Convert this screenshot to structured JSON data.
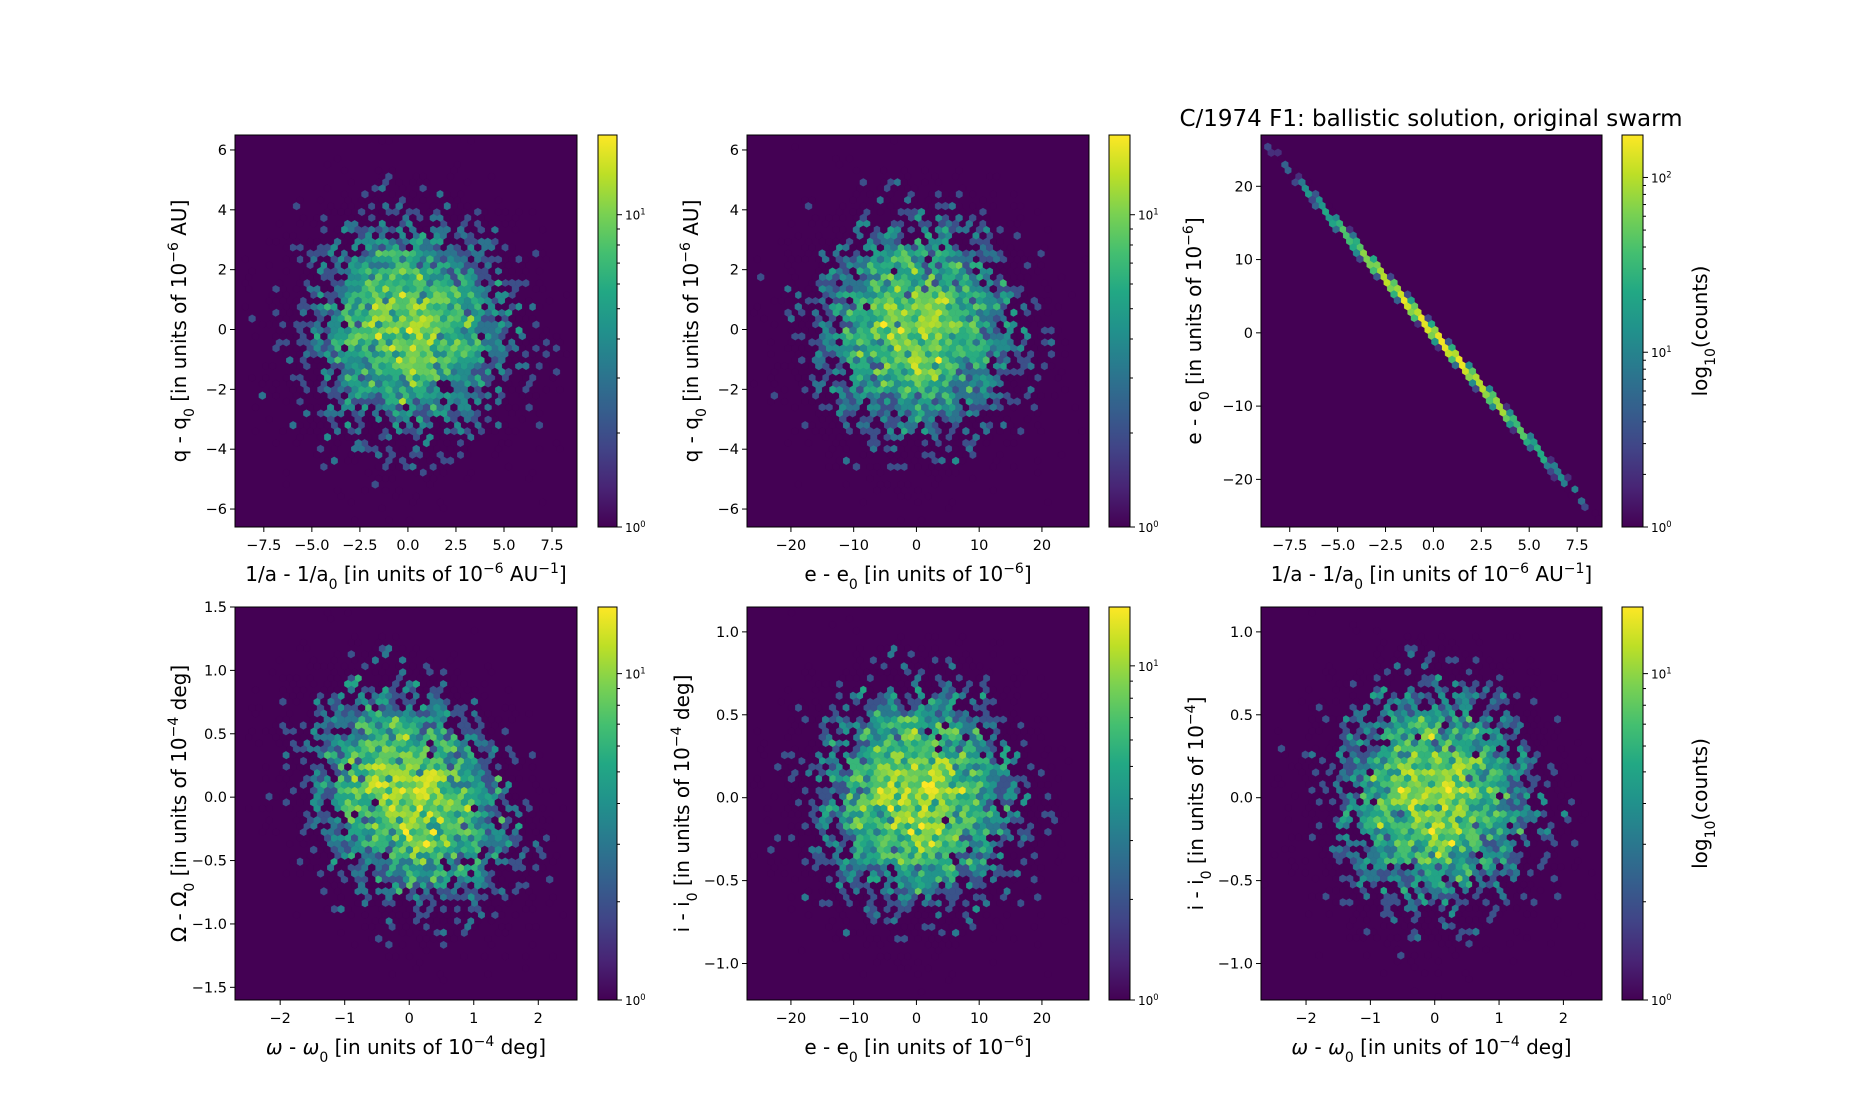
{
  "title": "C/1974 F1:  ballistic solution, original swarm",
  "colormap": "viridis",
  "background_color": "#440154",
  "chart_data": [
    {
      "type": "heatmap",
      "kind": "hexbin",
      "color_scale": "log",
      "xlim": [
        -9,
        8.8
      ],
      "ylim": [
        -6.6,
        6.5
      ],
      "xticks": [
        -7.5,
        -5,
        -2.5,
        0,
        2.5,
        5,
        7.5
      ],
      "xticklabels": [
        "−7.5",
        "−5.0",
        "−2.5",
        "0.0",
        "2.5",
        "5.0",
        "7.5"
      ],
      "yticks": [
        -6,
        -4,
        -2,
        0,
        2,
        4,
        6
      ],
      "yticklabels": [
        "−6",
        "−4",
        "−2",
        "0",
        "2",
        "4",
        "6"
      ],
      "xlabel": [
        [
          "1/a - 1/a",
          ""
        ],
        [
          "0",
          "sub"
        ],
        [
          " [in units of 10",
          ""
        ],
        [
          "−6",
          "sup"
        ],
        [
          " AU",
          ""
        ],
        [
          "−1",
          "sup"
        ],
        [
          "]",
          ""
        ]
      ],
      "ylabel": [
        [
          "q - q",
          ""
        ],
        [
          "0",
          "sub"
        ],
        [
          " [in units of 10",
          ""
        ],
        [
          "−6",
          "sup"
        ],
        [
          " AU]",
          ""
        ]
      ],
      "colorbar": {
        "range": [
          1,
          18
        ],
        "ticks": [
          [
            "10",
            "0"
          ],
          [
            "10",
            "1"
          ]
        ],
        "label": ""
      },
      "distribution": {
        "x_mean": 0,
        "x_std": 2.8,
        "y_mean": 0,
        "y_std": 1.9,
        "correlation": 0
      }
    },
    {
      "type": "heatmap",
      "kind": "hexbin",
      "color_scale": "log",
      "xlim": [
        -27,
        27.5
      ],
      "ylim": [
        -6.6,
        6.5
      ],
      "xticks": [
        -20,
        -10,
        0,
        10,
        20
      ],
      "xticklabels": [
        "−20",
        "−10",
        "0",
        "10",
        "20"
      ],
      "yticks": [
        -6,
        -4,
        -2,
        0,
        2,
        4,
        6
      ],
      "yticklabels": [
        "−6",
        "−4",
        "−2",
        "0",
        "2",
        "4",
        "6"
      ],
      "xlabel": [
        [
          "e - e",
          ""
        ],
        [
          "0",
          "sub"
        ],
        [
          " [in units of 10",
          ""
        ],
        [
          "−6",
          "sup"
        ],
        [
          "]",
          ""
        ]
      ],
      "ylabel": [
        [
          "q - q",
          ""
        ],
        [
          "0",
          "sub"
        ],
        [
          " [in units of 10",
          ""
        ],
        [
          "−6",
          "sup"
        ],
        [
          " AU]",
          ""
        ]
      ],
      "colorbar": {
        "range": [
          1,
          18
        ],
        "ticks": [
          [
            "10",
            "0"
          ],
          [
            "10",
            "1"
          ]
        ],
        "label": ""
      },
      "distribution": {
        "x_mean": 0,
        "x_std": 8.3,
        "y_mean": 0,
        "y_std": 1.9,
        "correlation": 0
      }
    },
    {
      "type": "heatmap",
      "kind": "hexbin",
      "color_scale": "log",
      "xlim": [
        -9,
        8.8
      ],
      "ylim": [
        -26.5,
        27
      ],
      "xticks": [
        -7.5,
        -5,
        -2.5,
        0,
        2.5,
        5,
        7.5
      ],
      "xticklabels": [
        "−7.5",
        "−5.0",
        "−2.5",
        "0.0",
        "2.5",
        "5.0",
        "7.5"
      ],
      "yticks": [
        -20,
        -10,
        0,
        10,
        20
      ],
      "yticklabels": [
        "−20",
        "−10",
        "0",
        "10",
        "20"
      ],
      "xlabel": [
        [
          "1/a - 1/a",
          ""
        ],
        [
          "0",
          "sub"
        ],
        [
          " [in units of 10",
          ""
        ],
        [
          "−6",
          "sup"
        ],
        [
          " AU",
          ""
        ],
        [
          "−1",
          "sup"
        ],
        [
          "]",
          ""
        ]
      ],
      "ylabel": [
        [
          "e - e",
          ""
        ],
        [
          "0",
          "sub"
        ],
        [
          " [in units of 10",
          ""
        ],
        [
          "−6",
          "sup"
        ],
        [
          "]",
          ""
        ]
      ],
      "colorbar": {
        "range": [
          1,
          175
        ],
        "ticks": [
          [
            "10",
            "0"
          ],
          [
            "10",
            "1"
          ],
          [
            "10",
            "2"
          ]
        ],
        "label": [
          [
            "log",
            ""
          ],
          [
            "10",
            "sub"
          ],
          [
            "(counts)",
            ""
          ]
        ]
      },
      "distribution": {
        "x_mean": 0,
        "x_std": 2.8,
        "slope": -2.95,
        "y_scatter_std": 0.25
      }
    },
    {
      "type": "heatmap",
      "kind": "hexbin",
      "color_scale": "log",
      "xlim": [
        -2.7,
        2.6
      ],
      "ylim": [
        -1.6,
        1.5
      ],
      "xticks": [
        -2,
        -1,
        0,
        1,
        2
      ],
      "xticklabels": [
        "−2",
        "−1",
        "0",
        "1",
        "2"
      ],
      "yticks": [
        -1.5,
        -1,
        -0.5,
        0,
        0.5,
        1,
        1.5
      ],
      "yticklabels": [
        "−1.5",
        "−1.0",
        "−0.5",
        "0.0",
        "0.5",
        "1.0",
        "1.5"
      ],
      "xlabel": [
        [
          "ω",
          "it"
        ],
        [
          " - ",
          ""
        ],
        [
          "ω",
          "it"
        ],
        [
          "0",
          "sub"
        ],
        [
          " [in units of 10",
          ""
        ],
        [
          "−4",
          "sup"
        ],
        [
          " deg]",
          ""
        ]
      ],
      "ylabel": [
        [
          "Ω - Ω",
          ""
        ],
        [
          "0",
          "sub"
        ],
        [
          " [in units of 10",
          ""
        ],
        [
          "−4",
          "sup"
        ],
        [
          " deg]",
          ""
        ]
      ],
      "colorbar": {
        "range": [
          1,
          16
        ],
        "ticks": [
          [
            "10",
            "0"
          ],
          [
            "10",
            "1"
          ]
        ],
        "label": ""
      },
      "distribution": {
        "x_mean": 0,
        "x_std": 0.8,
        "y_mean": 0,
        "y_std": 0.45,
        "correlation": -0.25
      }
    },
    {
      "type": "heatmap",
      "kind": "hexbin",
      "color_scale": "log",
      "xlim": [
        -27,
        27.5
      ],
      "ylim": [
        -1.22,
        1.15
      ],
      "xticks": [
        -20,
        -10,
        0,
        10,
        20
      ],
      "xticklabels": [
        "−20",
        "−10",
        "0",
        "10",
        "20"
      ],
      "yticks": [
        -1,
        -0.5,
        0,
        0.5,
        1
      ],
      "yticklabels": [
        "−1.0",
        "−0.5",
        "0.0",
        "0.5",
        "1.0"
      ],
      "xlabel": [
        [
          "e - e",
          ""
        ],
        [
          "0",
          "sub"
        ],
        [
          " [in units of 10",
          ""
        ],
        [
          "−6",
          "sup"
        ],
        [
          "]",
          ""
        ]
      ],
      "ylabel": [
        [
          "i - i",
          ""
        ],
        [
          "0",
          "sub"
        ],
        [
          " [in units of 10",
          ""
        ],
        [
          "−4",
          "sup"
        ],
        [
          " deg]",
          ""
        ]
      ],
      "colorbar": {
        "range": [
          1,
          15
        ],
        "ticks": [
          [
            "10",
            "0"
          ],
          [
            "10",
            "1"
          ]
        ],
        "label": ""
      },
      "distribution": {
        "x_mean": 0,
        "x_std": 8.3,
        "y_mean": 0,
        "y_std": 0.35,
        "correlation": 0
      }
    },
    {
      "type": "heatmap",
      "kind": "hexbin",
      "color_scale": "log",
      "xlim": [
        -2.7,
        2.6
      ],
      "ylim": [
        -1.22,
        1.15
      ],
      "xticks": [
        -2,
        -1,
        0,
        1,
        2
      ],
      "xticklabels": [
        "−2",
        "−1",
        "0",
        "1",
        "2"
      ],
      "yticks": [
        -1,
        -0.5,
        0,
        0.5,
        1
      ],
      "yticklabels": [
        "−1.0",
        "−0.5",
        "0.0",
        "0.5",
        "1.0"
      ],
      "xlabel": [
        [
          "ω",
          "it"
        ],
        [
          " - ",
          ""
        ],
        [
          "ω",
          "it"
        ],
        [
          "0",
          "sub"
        ],
        [
          " [in units of 10",
          ""
        ],
        [
          "−4",
          "sup"
        ],
        [
          " deg]",
          ""
        ]
      ],
      "ylabel": [
        [
          "i - i",
          ""
        ],
        [
          "0",
          "sub"
        ],
        [
          " [in units of 10",
          ""
        ],
        [
          "−4",
          "sup"
        ],
        [
          "]",
          ""
        ]
      ],
      "colorbar": {
        "range": [
          1,
          16
        ],
        "ticks": [
          [
            "10",
            "0"
          ],
          [
            "10",
            "1"
          ]
        ],
        "label": [
          [
            "log",
            ""
          ],
          [
            "10",
            "sub"
          ],
          [
            "(counts)",
            ""
          ]
        ]
      },
      "distribution": {
        "x_mean": 0,
        "x_std": 0.8,
        "y_mean": 0,
        "y_std": 0.35,
        "correlation": 0
      }
    }
  ]
}
